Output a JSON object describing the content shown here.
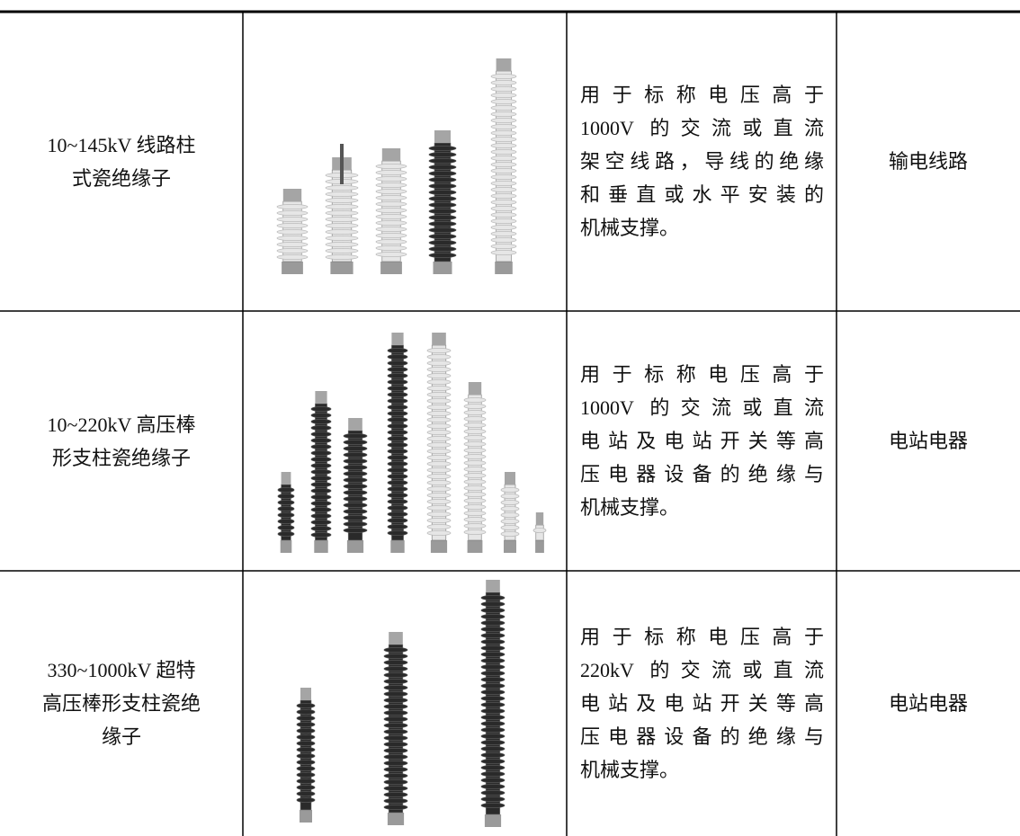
{
  "table": {
    "rows": [
      {
        "name": [
          "10~145kV 线路柱",
          "式瓷绝缘子"
        ],
        "description": [
          "用于标称电压高于",
          "1000V 的交流或直流",
          "架空线路，导线的绝缘",
          "和垂直或水平安装的",
          "机械支撑。"
        ],
        "application": "输电线路"
      },
      {
        "name": [
          "10~220kV 高压棒",
          "形支柱瓷绝缘子"
        ],
        "description": [
          "用于标称电压高于",
          "1000V 的交流或直流",
          "电站及电站开关等高",
          "压电器设备的绝缘与",
          "机械支撑。"
        ],
        "application": "电站电器"
      },
      {
        "name": [
          "330~1000kV 超特",
          "高压棒形支柱瓷绝",
          "缘子"
        ],
        "description": [
          "用于标称电压高于",
          "220kV 的交流或直流",
          "电站及电站开关等高",
          "压电器设备的绝缘与",
          "机械支撑。"
        ],
        "application": "电站电器"
      }
    ]
  }
}
